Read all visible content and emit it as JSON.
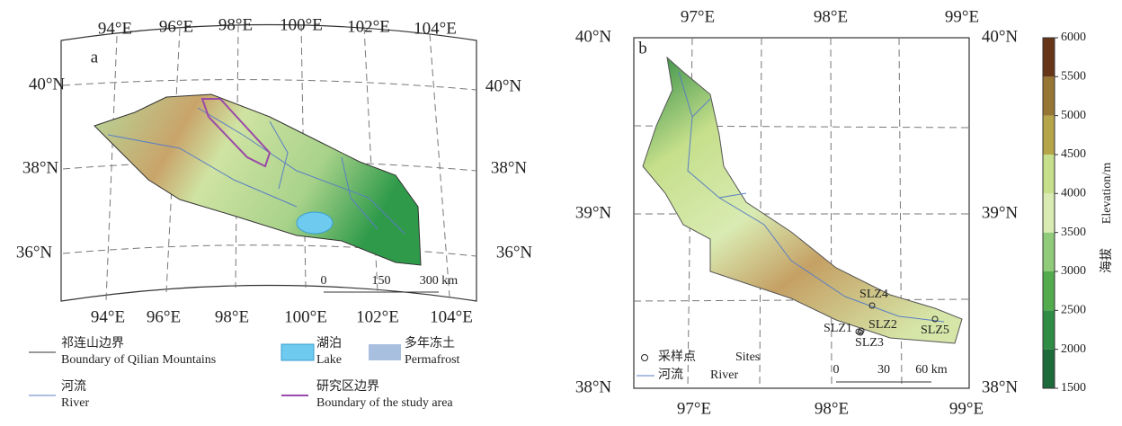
{
  "panel_a": {
    "label": "a",
    "top_lon": [
      "94°E",
      "96°E",
      "98°E",
      "100°E",
      "102°E",
      "104°E"
    ],
    "bottom_lon": [
      "94°E",
      "96°E",
      "98°E",
      "100°E",
      "102°E",
      "104°E"
    ],
    "left_lat": [
      "40°N",
      "38°N",
      "36°N"
    ],
    "right_lat": [
      "40°N",
      "38°N",
      "36°N"
    ],
    "scale": [
      "0",
      "150",
      "300 km"
    ]
  },
  "legend_a": [
    {
      "cn": "祁连山边界",
      "en": "Boundary of Qilian Mountains"
    },
    {
      "cn": "湖泊",
      "en": "Lake"
    },
    {
      "cn": "多年冻土",
      "en": "Permafrost"
    },
    {
      "cn": "河流",
      "en": "River"
    },
    {
      "cn": "研究区边界",
      "en": "Boundary of the study area"
    }
  ],
  "panel_b": {
    "label": "b",
    "top_lon": [
      "97°E",
      "98°E",
      "99°E"
    ],
    "bottom_lon": [
      "97°E",
      "98°E",
      "99°E"
    ],
    "left_lat": [
      "40°N",
      "39°N",
      "38°N"
    ],
    "right_lat": [
      "40°N",
      "39°N",
      "38°N"
    ],
    "sites": [
      "SLZ1",
      "SLZ2",
      "SLZ3",
      "SLZ4",
      "SLZ5"
    ],
    "scale": [
      "0",
      "30",
      "60 km"
    ]
  },
  "legend_b": [
    {
      "cn": "采样点",
      "en": "Sites"
    },
    {
      "cn": "河流",
      "en": "River"
    }
  ],
  "colorbar": {
    "title_cn": "海拔",
    "title_en": "Elevation/m",
    "ticks": [
      1500,
      2000,
      2500,
      3000,
      3500,
      4000,
      4500,
      5000,
      5500,
      6000
    ],
    "colors": [
      "#1d6a3a",
      "#2f8c45",
      "#52ab4c",
      "#8fcb78",
      "#d9ebb2",
      "#c5df8b",
      "#b5a548",
      "#977634",
      "#673618"
    ]
  }
}
